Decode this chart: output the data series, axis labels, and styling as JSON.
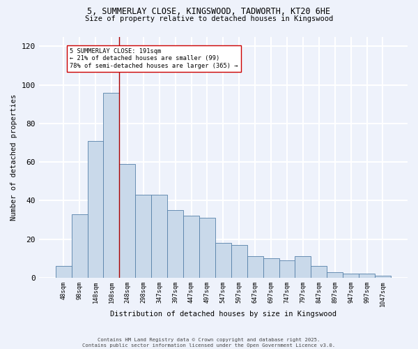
{
  "title_line1": "5, SUMMERLAY CLOSE, KINGSWOOD, TADWORTH, KT20 6HE",
  "title_line2": "Size of property relative to detached houses in Kingswood",
  "xlabel": "Distribution of detached houses by size in Kingswood",
  "ylabel": "Number of detached properties",
  "bar_labels": [
    "48sqm",
    "98sqm",
    "148sqm",
    "198sqm",
    "248sqm",
    "298sqm",
    "347sqm",
    "397sqm",
    "447sqm",
    "497sqm",
    "547sqm",
    "597sqm",
    "647sqm",
    "697sqm",
    "747sqm",
    "797sqm",
    "847sqm",
    "897sqm",
    "947sqm",
    "997sqm",
    "1047sqm"
  ],
  "bar_values": [
    6,
    33,
    71,
    96,
    59,
    43,
    43,
    35,
    32,
    31,
    18,
    17,
    11,
    10,
    9,
    11,
    6,
    3,
    2,
    2,
    1
  ],
  "bar_color": "#c9d9ea",
  "bar_edge_color": "#5580a8",
  "background_color": "#eef2fb",
  "grid_color": "#ffffff",
  "vline_x": 3.5,
  "vline_color": "#aa0000",
  "annotation_text": "5 SUMMERLAY CLOSE: 191sqm\n← 21% of detached houses are smaller (99)\n78% of semi-detached houses are larger (365) →",
  "ylim": [
    0,
    125
  ],
  "yticks": [
    0,
    20,
    40,
    60,
    80,
    100,
    120
  ],
  "footer_line1": "Contains HM Land Registry data © Crown copyright and database right 2025.",
  "footer_line2": "Contains public sector information licensed under the Open Government Licence v3.0."
}
